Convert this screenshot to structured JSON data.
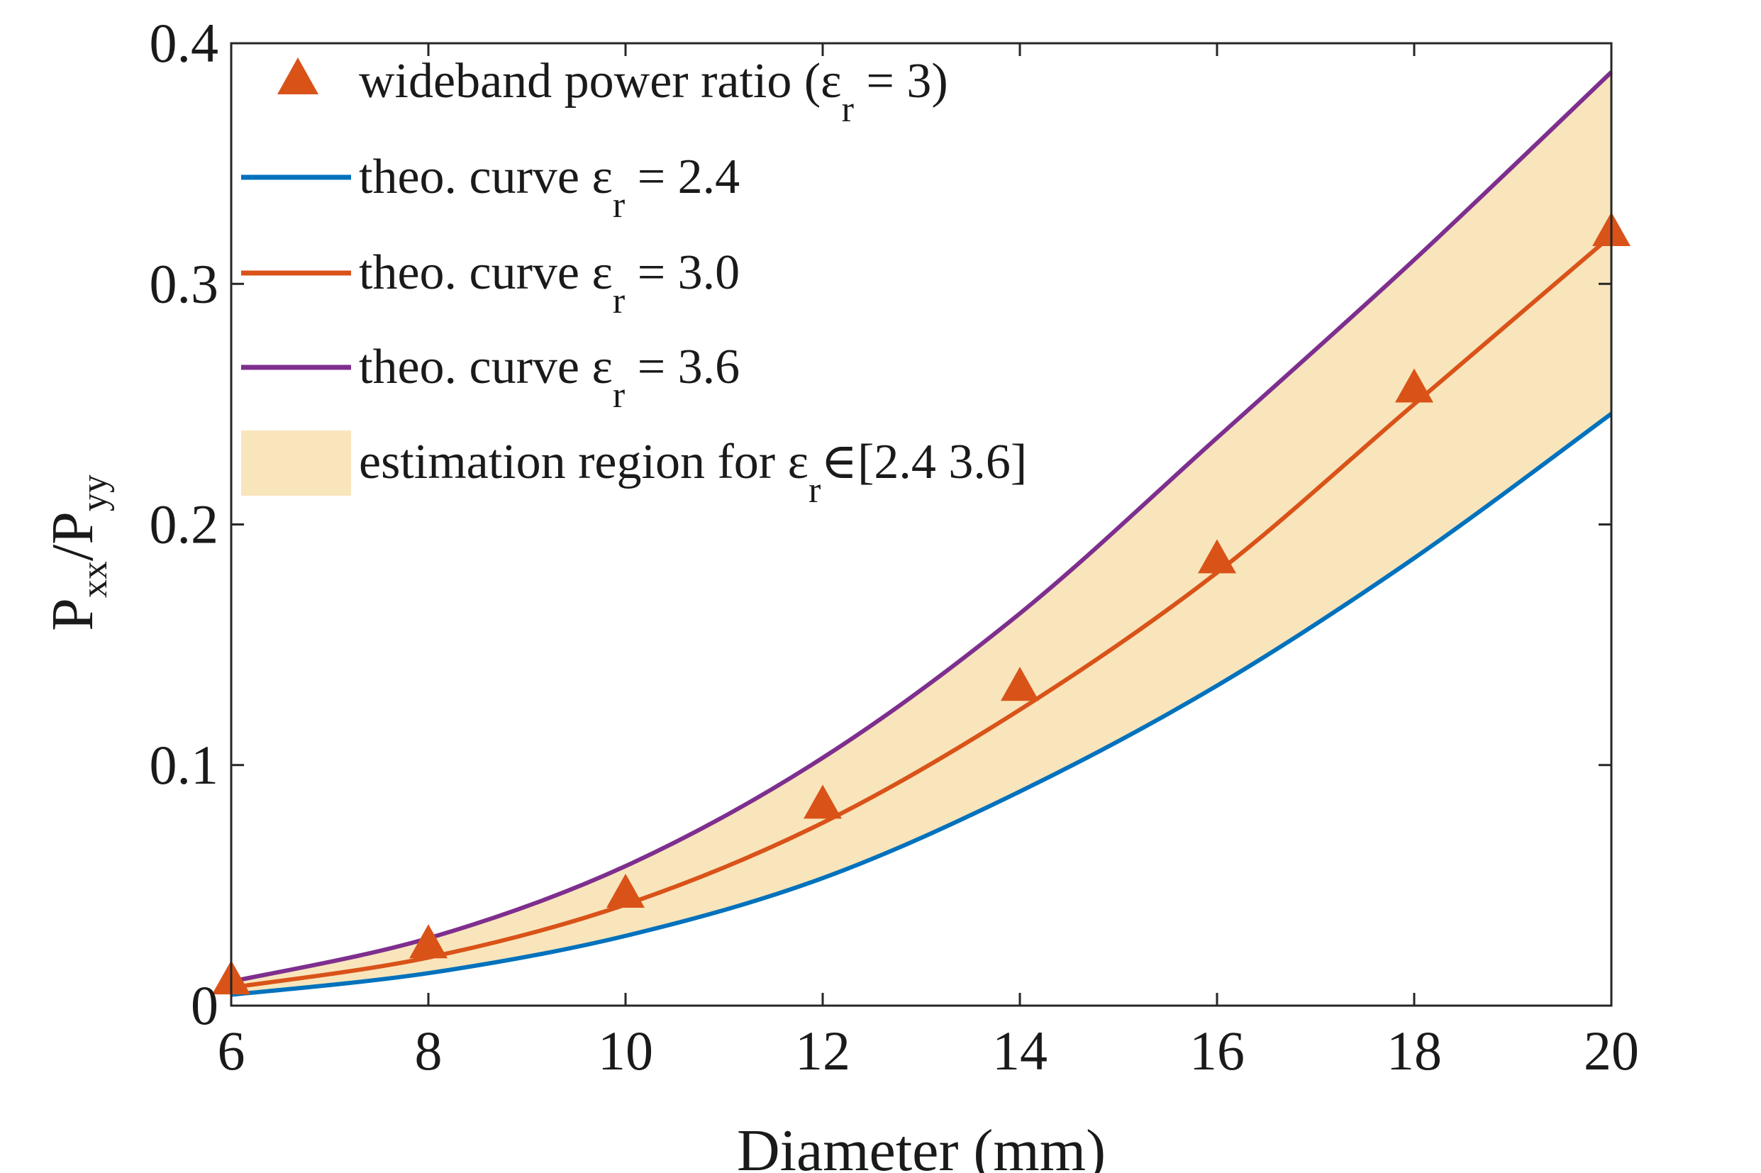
{
  "chart_data": {
    "type": "line",
    "xlabel": "Diameter (mm)",
    "ylabel": {
      "main": "P",
      "sub1": "xx",
      "slash": "/P",
      "sub2": "yy"
    },
    "xlim": [
      6,
      20
    ],
    "ylim": [
      0,
      0.4
    ],
    "xticks": [
      "6",
      "8",
      "10",
      "12",
      "14",
      "16",
      "18",
      "20"
    ],
    "yticks": [
      "0",
      "0.1",
      "0.2",
      "0.3",
      "0.4"
    ],
    "grid": false,
    "legend_position": "top-left",
    "x": [
      6,
      8,
      10,
      12,
      14,
      16,
      18,
      20
    ],
    "series": [
      {
        "name": "wideband power ratio (εr = 3)",
        "kind": "marker",
        "color": "#d95319",
        "values": [
          0.01,
          0.025,
          0.046,
          0.083,
          0.132,
          0.185,
          0.256,
          0.321
        ]
      },
      {
        "name": "theo. curve εr = 2.4",
        "kind": "line",
        "color": "#0072bd",
        "values": [
          0.0045,
          0.0135,
          0.029,
          0.053,
          0.089,
          0.133,
          0.186,
          0.246
        ]
      },
      {
        "name": "theo. curve εr = 3.0",
        "kind": "line",
        "color": "#d95319",
        "values": [
          0.0075,
          0.02,
          0.042,
          0.076,
          0.123,
          0.18,
          0.25,
          0.32
        ]
      },
      {
        "name": "theo. curve εr = 3.6",
        "kind": "line",
        "color": "#7e2f8e",
        "values": [
          0.01,
          0.028,
          0.058,
          0.103,
          0.163,
          0.236,
          0.31,
          0.388
        ]
      }
    ],
    "fill_region": {
      "name": "estimation region for εr ∈[2.4 3.6]",
      "color": "#f9e5bc",
      "lower_series": "theo. curve εr = 2.4",
      "upper_series": "theo. curve εr = 3.6"
    },
    "legend": [
      {
        "key": "marker",
        "pre": "wideband power ratio (ε",
        "sub": "r",
        "post": " = 3)"
      },
      {
        "key": "line24",
        "pre": "theo. curve ε",
        "sub": "r",
        "post": " = 2.4"
      },
      {
        "key": "line30",
        "pre": "theo. curve ε",
        "sub": "r",
        "post": " = 3.0"
      },
      {
        "key": "line36",
        "pre": "theo. curve ε",
        "sub": "r",
        "post": " = 3.6"
      },
      {
        "key": "fill",
        "pre": "estimation region for ε",
        "sub": "r",
        "post": "∈[2.4 3.6]"
      }
    ]
  }
}
